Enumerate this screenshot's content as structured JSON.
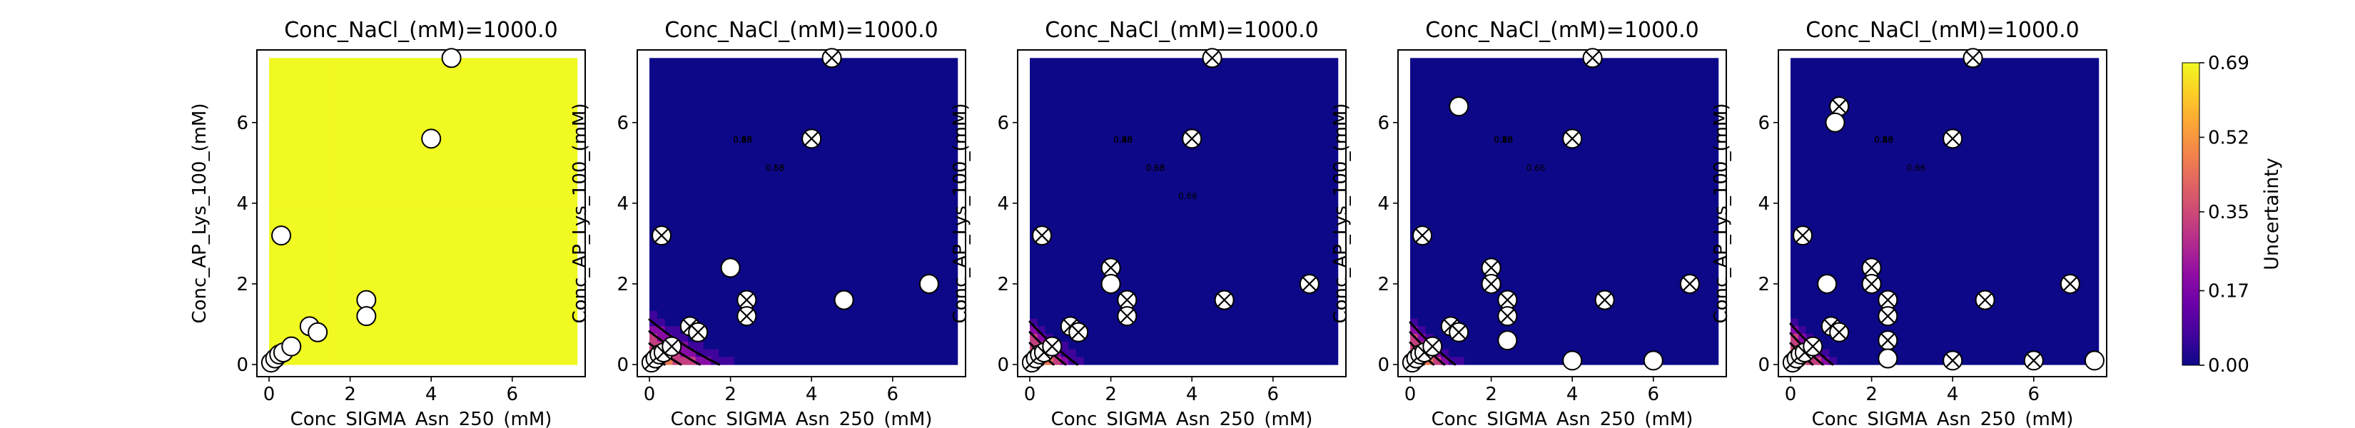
{
  "figure": {
    "colorbar": {
      "label": "Uncertainty",
      "ticks": [
        "0.00",
        "0.17",
        "0.35",
        "0.52",
        "0.69"
      ],
      "range": [
        0,
        0.69
      ]
    }
  },
  "chart_data": [
    {
      "type": "contour",
      "title": "Conc_NaCl_(mM)=1000.0",
      "xlabel": "Conc_SIGMA_Asn_250_(mM)",
      "ylabel": "Conc_AP_Lys_100_(mM)",
      "xlim": [
        -0.3,
        7.8
      ],
      "ylim": [
        -0.3,
        7.8
      ],
      "xticks": [
        0,
        2,
        4,
        6
      ],
      "yticks": [
        0,
        2,
        4,
        6
      ],
      "colormap": "plasma",
      "model": {
        "ux": 0,
        "uy": 0,
        "kx": 0,
        "ky": 0,
        "base": 0.69
      },
      "contour_levels": [],
      "dash_level": null,
      "contour_labels": [],
      "points": [
        {
          "x": 0.05,
          "y": 0.05,
          "tested": false
        },
        {
          "x": 0.15,
          "y": 0.15,
          "tested": false
        },
        {
          "x": 0.25,
          "y": 0.25,
          "tested": false
        },
        {
          "x": 0.35,
          "y": 0.3,
          "tested": false
        },
        {
          "x": 0.55,
          "y": 0.45,
          "tested": false
        },
        {
          "x": 0.3,
          "y": 3.2,
          "tested": false
        },
        {
          "x": 1.0,
          "y": 0.95,
          "tested": false
        },
        {
          "x": 1.2,
          "y": 0.8,
          "tested": false
        },
        {
          "x": 2.4,
          "y": 1.6,
          "tested": false
        },
        {
          "x": 2.4,
          "y": 1.2,
          "tested": false
        },
        {
          "x": 4.0,
          "y": 5.6,
          "tested": false
        },
        {
          "x": 4.5,
          "y": 7.6,
          "tested": false
        }
      ]
    },
    {
      "type": "contour",
      "title": "Conc_NaCl_(mM)=1000.0",
      "xlabel": "Conc_SIGMA_Asn_250_(mM)",
      "ylabel": "Conc_AP_Lys_100_(mM)",
      "xlim": [
        -0.3,
        7.8
      ],
      "ylim": [
        -0.3,
        7.8
      ],
      "xticks": [
        0,
        2,
        4,
        6
      ],
      "yticks": [
        0,
        2,
        4,
        6
      ],
      "colormap": "plasma",
      "model": {
        "ux": 6.0,
        "uy": 6.5,
        "kx": 0.06,
        "ky": 0.08,
        "base": 0.66
      },
      "contour_levels": [
        0.13,
        0.26,
        0.4,
        0.53,
        0.66
      ],
      "dash_level": 0.6,
      "contour_labels": [
        "0.26",
        "0.40",
        "0.53",
        "0.66",
        "0.66",
        "0.53"
      ],
      "points": [
        {
          "x": 0.05,
          "y": 0.05,
          "tested": true
        },
        {
          "x": 0.15,
          "y": 0.15,
          "tested": true
        },
        {
          "x": 0.25,
          "y": 0.25,
          "tested": true
        },
        {
          "x": 0.35,
          "y": 0.3,
          "tested": true
        },
        {
          "x": 0.55,
          "y": 0.45,
          "tested": true
        },
        {
          "x": 0.3,
          "y": 3.2,
          "tested": true
        },
        {
          "x": 1.0,
          "y": 0.95,
          "tested": true
        },
        {
          "x": 1.2,
          "y": 0.8,
          "tested": true
        },
        {
          "x": 2.4,
          "y": 1.6,
          "tested": true
        },
        {
          "x": 2.4,
          "y": 1.2,
          "tested": true
        },
        {
          "x": 4.0,
          "y": 5.6,
          "tested": true
        },
        {
          "x": 4.5,
          "y": 7.6,
          "tested": true
        },
        {
          "x": 2.0,
          "y": 2.4,
          "tested": false
        },
        {
          "x": 4.8,
          "y": 1.6,
          "tested": false
        },
        {
          "x": 6.9,
          "y": 2.0,
          "tested": false
        }
      ]
    },
    {
      "type": "contour",
      "title": "Conc_NaCl_(mM)=1000.0",
      "xlabel": "Conc_SIGMA_Asn_250_(mM)",
      "ylabel": "Conc_AP_Lys_100_(mM)",
      "xlim": [
        -0.3,
        7.8
      ],
      "ylim": [
        -0.3,
        7.8
      ],
      "xticks": [
        0,
        2,
        4,
        6
      ],
      "yticks": [
        0,
        2,
        4,
        6
      ],
      "colormap": "plasma",
      "model": {
        "ux": 6.0,
        "uy": 6.5,
        "kx": 0.09,
        "ky": 0.09,
        "base": 0.7
      },
      "contour_levels": [
        0.13,
        0.26,
        0.4,
        0.53,
        0.66
      ],
      "dash_level": 0.63,
      "contour_labels": [
        "0.53",
        "0.66",
        "0.66",
        "0.53",
        "0.40",
        "0.26",
        "0.66"
      ],
      "points": [
        {
          "x": 0.05,
          "y": 0.05,
          "tested": true
        },
        {
          "x": 0.15,
          "y": 0.15,
          "tested": true
        },
        {
          "x": 0.25,
          "y": 0.25,
          "tested": true
        },
        {
          "x": 0.35,
          "y": 0.3,
          "tested": true
        },
        {
          "x": 0.55,
          "y": 0.45,
          "tested": true
        },
        {
          "x": 0.3,
          "y": 3.2,
          "tested": true
        },
        {
          "x": 1.0,
          "y": 0.95,
          "tested": true
        },
        {
          "x": 1.2,
          "y": 0.8,
          "tested": true
        },
        {
          "x": 2.4,
          "y": 1.6,
          "tested": true
        },
        {
          "x": 2.4,
          "y": 1.2,
          "tested": true
        },
        {
          "x": 4.0,
          "y": 5.6,
          "tested": true
        },
        {
          "x": 4.5,
          "y": 7.6,
          "tested": true
        },
        {
          "x": 2.0,
          "y": 2.4,
          "tested": true
        },
        {
          "x": 4.8,
          "y": 1.6,
          "tested": true
        },
        {
          "x": 6.9,
          "y": 2.0,
          "tested": true
        },
        {
          "x": 2.0,
          "y": 2.0,
          "tested": false
        }
      ]
    },
    {
      "type": "contour",
      "title": "Conc_NaCl_(mM)=1000.0",
      "xlabel": "Conc_SIGMA_Asn_250_(mM)",
      "ylabel": "Conc_AP_Lys_100_(mM)",
      "xlim": [
        -0.3,
        7.8
      ],
      "ylim": [
        -0.3,
        7.8
      ],
      "xticks": [
        0,
        2,
        4,
        6
      ],
      "yticks": [
        0,
        2,
        4,
        6
      ],
      "colormap": "plasma",
      "model": {
        "ux": 6.5,
        "uy": 6.8,
        "kx": 0.09,
        "ky": 0.09,
        "base": 0.72
      },
      "contour_levels": [
        0.13,
        0.26,
        0.4,
        0.53,
        0.66
      ],
      "dash_level": 0.66,
      "contour_labels": [
        "0.66",
        "0.66",
        "0.53",
        "0.40",
        "0.26"
      ],
      "points": [
        {
          "x": 0.05,
          "y": 0.05,
          "tested": true
        },
        {
          "x": 0.15,
          "y": 0.15,
          "tested": true
        },
        {
          "x": 0.25,
          "y": 0.25,
          "tested": true
        },
        {
          "x": 0.35,
          "y": 0.3,
          "tested": true
        },
        {
          "x": 0.55,
          "y": 0.45,
          "tested": true
        },
        {
          "x": 0.3,
          "y": 3.2,
          "tested": true
        },
        {
          "x": 1.0,
          "y": 0.95,
          "tested": true
        },
        {
          "x": 1.2,
          "y": 0.8,
          "tested": true
        },
        {
          "x": 2.4,
          "y": 1.6,
          "tested": true
        },
        {
          "x": 2.4,
          "y": 1.2,
          "tested": true
        },
        {
          "x": 4.0,
          "y": 5.6,
          "tested": true
        },
        {
          "x": 4.5,
          "y": 7.6,
          "tested": true
        },
        {
          "x": 2.0,
          "y": 2.4,
          "tested": true
        },
        {
          "x": 4.8,
          "y": 1.6,
          "tested": true
        },
        {
          "x": 6.9,
          "y": 2.0,
          "tested": true
        },
        {
          "x": 2.0,
          "y": 2.0,
          "tested": true
        },
        {
          "x": 1.2,
          "y": 6.4,
          "tested": false
        },
        {
          "x": 2.4,
          "y": 0.6,
          "tested": false
        },
        {
          "x": 4.0,
          "y": 0.1,
          "tested": false
        },
        {
          "x": 6.0,
          "y": 0.1,
          "tested": false
        }
      ]
    },
    {
      "type": "contour",
      "title": "Conc_NaCl_(mM)=1000.0",
      "xlabel": "Conc_SIGMA_Asn_250_(mM)",
      "ylabel": "Conc_AP_Lys_100_(mM)",
      "xlim": [
        -0.3,
        7.8
      ],
      "ylim": [
        -0.3,
        7.8
      ],
      "xticks": [
        0,
        2,
        4,
        6
      ],
      "yticks": [
        0,
        2,
        4,
        6
      ],
      "colormap": "plasma",
      "model": {
        "ux": 6.5,
        "uy": 7.0,
        "kx": 0.095,
        "ky": 0.09,
        "base": 0.72
      },
      "contour_levels": [
        0.13,
        0.26,
        0.4,
        0.53,
        0.66
      ],
      "dash_level": 0.66,
      "contour_labels": [
        "0.66",
        "0.66",
        "0.53",
        "0.40",
        "0.26"
      ],
      "points": [
        {
          "x": 0.05,
          "y": 0.05,
          "tested": true
        },
        {
          "x": 0.15,
          "y": 0.15,
          "tested": true
        },
        {
          "x": 0.25,
          "y": 0.25,
          "tested": true
        },
        {
          "x": 0.35,
          "y": 0.3,
          "tested": true
        },
        {
          "x": 0.55,
          "y": 0.45,
          "tested": true
        },
        {
          "x": 0.3,
          "y": 3.2,
          "tested": true
        },
        {
          "x": 1.0,
          "y": 0.95,
          "tested": true
        },
        {
          "x": 1.2,
          "y": 0.8,
          "tested": true
        },
        {
          "x": 2.4,
          "y": 1.6,
          "tested": true
        },
        {
          "x": 2.4,
          "y": 1.2,
          "tested": true
        },
        {
          "x": 4.0,
          "y": 5.6,
          "tested": true
        },
        {
          "x": 4.5,
          "y": 7.6,
          "tested": true
        },
        {
          "x": 2.0,
          "y": 2.4,
          "tested": true
        },
        {
          "x": 4.8,
          "y": 1.6,
          "tested": true
        },
        {
          "x": 6.9,
          "y": 2.0,
          "tested": true
        },
        {
          "x": 2.0,
          "y": 2.0,
          "tested": true
        },
        {
          "x": 1.2,
          "y": 6.4,
          "tested": true
        },
        {
          "x": 2.4,
          "y": 0.6,
          "tested": true
        },
        {
          "x": 4.0,
          "y": 0.1,
          "tested": true
        },
        {
          "x": 6.0,
          "y": 0.1,
          "tested": true
        },
        {
          "x": 1.1,
          "y": 6.0,
          "tested": false
        },
        {
          "x": 0.9,
          "y": 2.0,
          "tested": false
        },
        {
          "x": 2.4,
          "y": 0.15,
          "tested": false
        },
        {
          "x": 7.5,
          "y": 0.1,
          "tested": false
        }
      ]
    }
  ]
}
